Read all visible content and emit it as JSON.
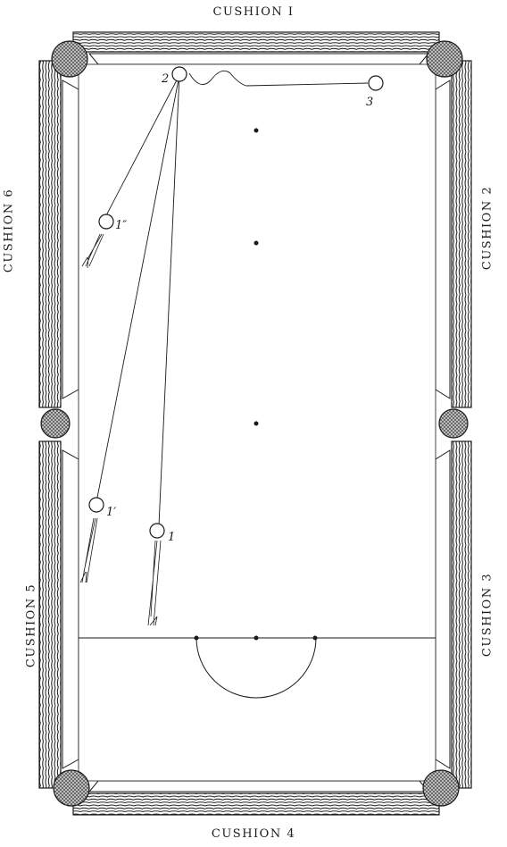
{
  "cushions": {
    "c1": "CUSHION I",
    "c2": "CUSHION 2",
    "c3": "CUSHION 3",
    "c4": "CUSHION 4",
    "c5": "CUSHION 5",
    "c6": "CUSHION 6"
  },
  "balls": {
    "b2": "2",
    "b3": "3",
    "b1": "1",
    "b1p": "1′",
    "b1pp": "1″"
  },
  "colors": {
    "ink": "#1a1a1a",
    "cloth": "#ffffff",
    "rail_wood": "#3a3a3a",
    "pocket": "#555555"
  }
}
